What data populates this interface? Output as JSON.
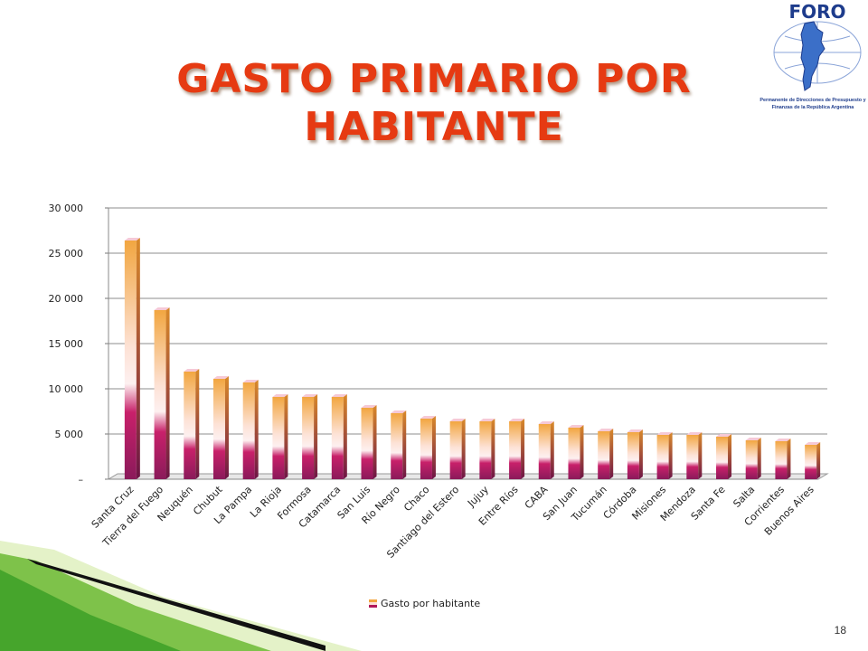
{
  "slide": {
    "title_line1": "GASTO PRIMARIO  POR",
    "title_line2": "HABITANTE",
    "page_number": "18"
  },
  "logo": {
    "name": "FORO",
    "caption_line1": "Permanente de Direcciones de Presupuesto y",
    "caption_line2": "Finanzas de la República Argentina",
    "colors": {
      "text": "#1e3c8c",
      "map": "#3b6fc8",
      "grid": "#8aa4d8"
    }
  },
  "colors": {
    "title": "#e63a12",
    "bar_top": "#f2a640",
    "bar_middle": "#fdf0f0",
    "bar_bottom": "#b0185a",
    "gridline": "#8c8c8c"
  },
  "chart_data": {
    "type": "bar",
    "categories": [
      "Santa Cruz",
      "Tierra del Fuego",
      "Neuquén",
      "Chubut",
      "La Pampa",
      "La Rioja",
      "Formosa",
      "Catamarca",
      "San Luis",
      "Río Negro",
      "Chaco",
      "Santiago del Estero",
      "Jujuy",
      "Entre Ríos",
      "CABA",
      "San Juan",
      "Tucumán",
      "Córdoba",
      "Misiones",
      "Mendoza",
      "Santa Fe",
      "Salta",
      "Corrientes",
      "Buenos Aires"
    ],
    "series": [
      {
        "name": "Gasto por  habitante",
        "values": [
          26400,
          18700,
          11900,
          11100,
          10700,
          9100,
          9100,
          9100,
          7900,
          7300,
          6700,
          6400,
          6400,
          6400,
          6100,
          5700,
          5300,
          5200,
          4900,
          4900,
          4700,
          4300,
          4200,
          3800
        ]
      }
    ],
    "ylim": [
      0,
      30000
    ],
    "yticks": [
      0,
      5000,
      10000,
      15000,
      20000,
      25000,
      30000
    ],
    "ytick_labels": [
      "–",
      "5 000",
      "10 000",
      "15 000",
      "20 000",
      "25 000",
      "30 000"
    ],
    "grid": true,
    "legend_position": "bottom-center"
  }
}
